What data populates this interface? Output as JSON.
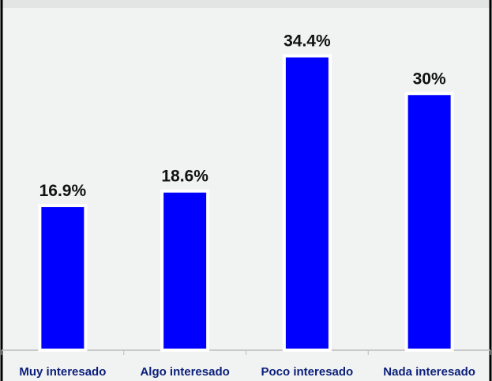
{
  "chart_data": {
    "type": "bar",
    "title": "",
    "xlabel": "",
    "ylabel": "",
    "categories": [
      "Muy interesado",
      "Algo interesado",
      "Poco interesado",
      "Nada interesado"
    ],
    "values": [
      16.9,
      18.6,
      34.4,
      30
    ],
    "value_labels": [
      "16.9%",
      "18.6%",
      "34.4%",
      "30%"
    ],
    "ylim": [
      0,
      40
    ],
    "grid": false,
    "legend": "none",
    "colors": {
      "bar": "#0000ff",
      "bar_outline": "#ffffff",
      "background": "#f1f2f2",
      "frame": "#000000",
      "category_text": "#0b1f7a",
      "value_text": "#111111"
    }
  }
}
